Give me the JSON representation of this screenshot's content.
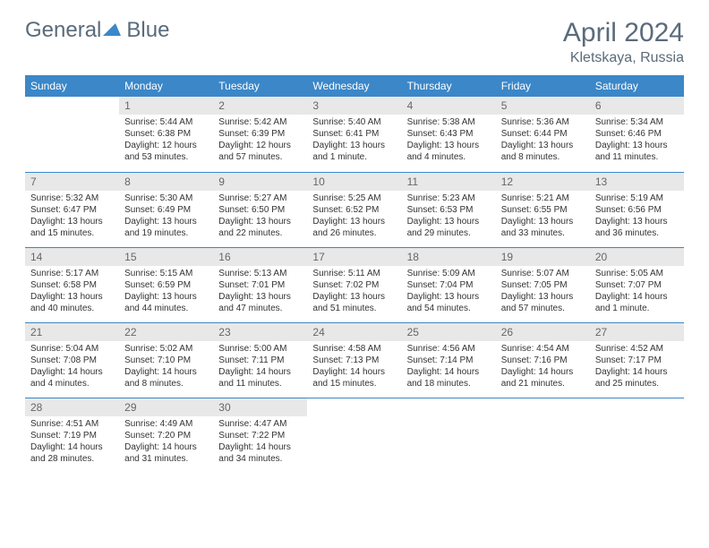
{
  "logo": {
    "general": "General",
    "blue": "Blue"
  },
  "title": "April 2024",
  "location": "Kletskaya, Russia",
  "colors": {
    "header_bg": "#3b87c8",
    "header_text": "#ffffff",
    "daynum_bg": "#e8e8e8",
    "daynum_text": "#666666",
    "body_text": "#333333",
    "title_text": "#5a6b7a",
    "border": "#3b87c8",
    "background": "#ffffff"
  },
  "days_of_week": [
    "Sunday",
    "Monday",
    "Tuesday",
    "Wednesday",
    "Thursday",
    "Friday",
    "Saturday"
  ],
  "start_offset": 1,
  "days": [
    {
      "n": 1,
      "sunrise": "5:44 AM",
      "sunset": "6:38 PM",
      "dl": "12 hours and 53 minutes."
    },
    {
      "n": 2,
      "sunrise": "5:42 AM",
      "sunset": "6:39 PM",
      "dl": "12 hours and 57 minutes."
    },
    {
      "n": 3,
      "sunrise": "5:40 AM",
      "sunset": "6:41 PM",
      "dl": "13 hours and 1 minute."
    },
    {
      "n": 4,
      "sunrise": "5:38 AM",
      "sunset": "6:43 PM",
      "dl": "13 hours and 4 minutes."
    },
    {
      "n": 5,
      "sunrise": "5:36 AM",
      "sunset": "6:44 PM",
      "dl": "13 hours and 8 minutes."
    },
    {
      "n": 6,
      "sunrise": "5:34 AM",
      "sunset": "6:46 PM",
      "dl": "13 hours and 11 minutes."
    },
    {
      "n": 7,
      "sunrise": "5:32 AM",
      "sunset": "6:47 PM",
      "dl": "13 hours and 15 minutes."
    },
    {
      "n": 8,
      "sunrise": "5:30 AM",
      "sunset": "6:49 PM",
      "dl": "13 hours and 19 minutes."
    },
    {
      "n": 9,
      "sunrise": "5:27 AM",
      "sunset": "6:50 PM",
      "dl": "13 hours and 22 minutes."
    },
    {
      "n": 10,
      "sunrise": "5:25 AM",
      "sunset": "6:52 PM",
      "dl": "13 hours and 26 minutes."
    },
    {
      "n": 11,
      "sunrise": "5:23 AM",
      "sunset": "6:53 PM",
      "dl": "13 hours and 29 minutes."
    },
    {
      "n": 12,
      "sunrise": "5:21 AM",
      "sunset": "6:55 PM",
      "dl": "13 hours and 33 minutes."
    },
    {
      "n": 13,
      "sunrise": "5:19 AM",
      "sunset": "6:56 PM",
      "dl": "13 hours and 36 minutes."
    },
    {
      "n": 14,
      "sunrise": "5:17 AM",
      "sunset": "6:58 PM",
      "dl": "13 hours and 40 minutes."
    },
    {
      "n": 15,
      "sunrise": "5:15 AM",
      "sunset": "6:59 PM",
      "dl": "13 hours and 44 minutes."
    },
    {
      "n": 16,
      "sunrise": "5:13 AM",
      "sunset": "7:01 PM",
      "dl": "13 hours and 47 minutes."
    },
    {
      "n": 17,
      "sunrise": "5:11 AM",
      "sunset": "7:02 PM",
      "dl": "13 hours and 51 minutes."
    },
    {
      "n": 18,
      "sunrise": "5:09 AM",
      "sunset": "7:04 PM",
      "dl": "13 hours and 54 minutes."
    },
    {
      "n": 19,
      "sunrise": "5:07 AM",
      "sunset": "7:05 PM",
      "dl": "13 hours and 57 minutes."
    },
    {
      "n": 20,
      "sunrise": "5:05 AM",
      "sunset": "7:07 PM",
      "dl": "14 hours and 1 minute."
    },
    {
      "n": 21,
      "sunrise": "5:04 AM",
      "sunset": "7:08 PM",
      "dl": "14 hours and 4 minutes."
    },
    {
      "n": 22,
      "sunrise": "5:02 AM",
      "sunset": "7:10 PM",
      "dl": "14 hours and 8 minutes."
    },
    {
      "n": 23,
      "sunrise": "5:00 AM",
      "sunset": "7:11 PM",
      "dl": "14 hours and 11 minutes."
    },
    {
      "n": 24,
      "sunrise": "4:58 AM",
      "sunset": "7:13 PM",
      "dl": "14 hours and 15 minutes."
    },
    {
      "n": 25,
      "sunrise": "4:56 AM",
      "sunset": "7:14 PM",
      "dl": "14 hours and 18 minutes."
    },
    {
      "n": 26,
      "sunrise": "4:54 AM",
      "sunset": "7:16 PM",
      "dl": "14 hours and 21 minutes."
    },
    {
      "n": 27,
      "sunrise": "4:52 AM",
      "sunset": "7:17 PM",
      "dl": "14 hours and 25 minutes."
    },
    {
      "n": 28,
      "sunrise": "4:51 AM",
      "sunset": "7:19 PM",
      "dl": "14 hours and 28 minutes."
    },
    {
      "n": 29,
      "sunrise": "4:49 AM",
      "sunset": "7:20 PM",
      "dl": "14 hours and 31 minutes."
    },
    {
      "n": 30,
      "sunrise": "4:47 AM",
      "sunset": "7:22 PM",
      "dl": "14 hours and 34 minutes."
    }
  ],
  "labels": {
    "sunrise": "Sunrise:",
    "sunset": "Sunset:",
    "daylight": "Daylight:"
  }
}
